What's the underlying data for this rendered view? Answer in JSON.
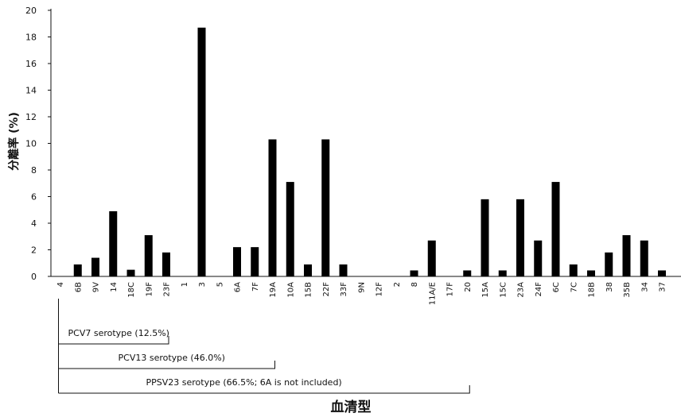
{
  "chart_data": {
    "type": "bar",
    "xlabel": "血清型",
    "ylabel": "分離率 (%)",
    "ylim": [
      0,
      20
    ],
    "yticks": [
      "0",
      "2",
      "4",
      "6",
      "8",
      "10",
      "12",
      "14",
      "16",
      "18",
      "20"
    ],
    "grid": false,
    "categories": [
      "4",
      "6B",
      "9V",
      "14",
      "18C",
      "19F",
      "23F",
      "1",
      "3",
      "5",
      "6A",
      "7F",
      "19A",
      "10A",
      "15B",
      "22F",
      "33F",
      "9N",
      "12F",
      "2",
      "8",
      "11A/E",
      "17F",
      "20",
      "15A",
      "15C",
      "23A",
      "24F",
      "6C",
      "7C",
      "18B",
      "38",
      "35B",
      "34",
      "37"
    ],
    "values": [
      0,
      0.9,
      1.4,
      4.9,
      0.5,
      3.1,
      1.8,
      0,
      18.7,
      0,
      2.2,
      2.2,
      10.3,
      7.1,
      0.9,
      10.3,
      0.9,
      0,
      0,
      0,
      0.45,
      2.7,
      0,
      0.45,
      5.8,
      0.45,
      5.8,
      2.7,
      7.1,
      0.9,
      0.45,
      1.8,
      3.1,
      2.7,
      0.45
    ],
    "bar_color": "#000000",
    "groups": [
      {
        "label": "PCV7 serotype (12.5%)",
        "start": "4",
        "end": "23F"
      },
      {
        "label": "PCV13 serotype (46.0%)",
        "start": "4",
        "end": "19A"
      },
      {
        "label": "PPSV23 serotype (66.5%; 6A is not included)",
        "start": "4",
        "end": "20"
      }
    ]
  }
}
